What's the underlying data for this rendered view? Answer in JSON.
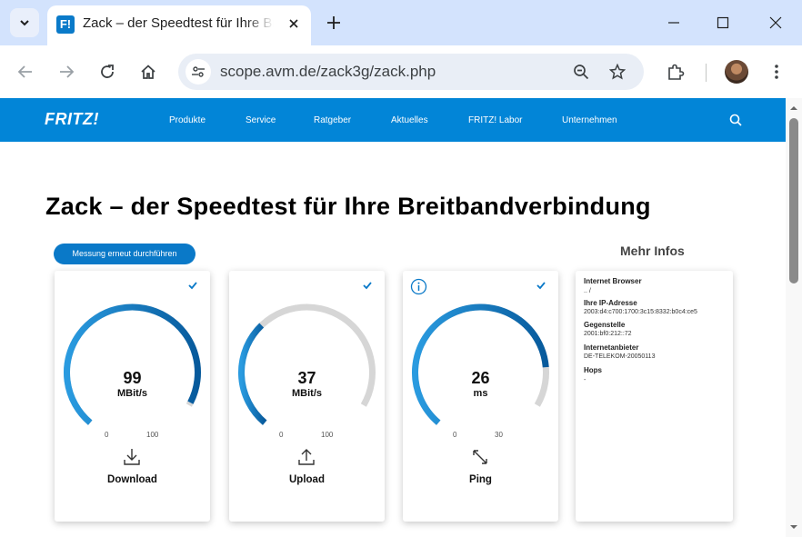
{
  "browser": {
    "tab_title": "Zack – der Speedtest für Ihre Breitbandverbindung",
    "url": "scope.avm.de/zack3g/zack.php"
  },
  "site_nav": {
    "logo": "FRITZ!",
    "links": [
      "Produkte",
      "Service",
      "Ratgeber",
      "Aktuelles",
      "FRITZ! Labor",
      "Unternehmen"
    ]
  },
  "page": {
    "heading": "Zack – der Speedtest für Ihre Breitbandverbindung",
    "retry_button": "Messung erneut durchführen",
    "more_info_title": "Mehr Infos"
  },
  "gauges": [
    {
      "value": "99",
      "unit": "MBit/s",
      "min": "0",
      "max": "100",
      "label": "Download",
      "fill_fraction": 0.99
    },
    {
      "value": "37",
      "unit": "MBit/s",
      "min": "0",
      "max": "100",
      "label": "Upload",
      "fill_fraction": 0.37
    },
    {
      "value": "26",
      "unit": "ms",
      "min": "0",
      "max": "30",
      "label": "Ping",
      "fill_fraction": 0.8667
    }
  ],
  "info": {
    "browser_label": "Internet Browser",
    "browser_value": ".. /",
    "ip_label": "Ihre IP-Adresse",
    "ip_value": "2003:d4:c700:1700:3c15:8332:b0c4:ce5",
    "remote_label": "Gegenstelle",
    "remote_value": "2001:bf0:212::72",
    "provider_label": "Internetanbieter",
    "provider_value": "DE-TELEKOM-20050113",
    "hops_label": "Hops",
    "hops_value": "-"
  },
  "colors": {
    "brand_blue": "#0285d7",
    "gauge_fill_start": "#2a9be0",
    "gauge_fill_end": "#075a9c",
    "gauge_track": "#d6d6d6"
  }
}
